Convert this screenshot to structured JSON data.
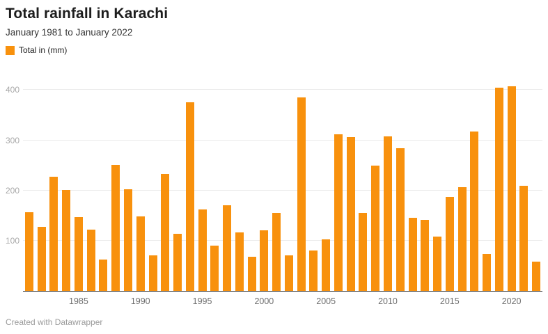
{
  "header": {
    "title": "Total rainfall in Karachi",
    "subtitle": "January 1981 to January 2022"
  },
  "legend": {
    "label": "Total in (mm)",
    "color": "#F8910D"
  },
  "chart_data": {
    "type": "bar",
    "title": "Total rainfall in Karachi",
    "subtitle": "January 1981 to January 2022",
    "categories": [
      1981,
      1982,
      1983,
      1984,
      1985,
      1986,
      1987,
      1988,
      1989,
      1990,
      1991,
      1992,
      1993,
      1994,
      1995,
      1996,
      1997,
      1998,
      1999,
      2000,
      2001,
      2002,
      2003,
      2004,
      2005,
      2006,
      2007,
      2008,
      2009,
      2010,
      2011,
      2012,
      2013,
      2014,
      2015,
      2016,
      2017,
      2018,
      2019,
      2020,
      2021,
      2022
    ],
    "series": [
      {
        "name": "Total in (mm)",
        "values": [
          156,
          127,
          227,
          201,
          147,
          122,
          62,
          251,
          203,
          148,
          71,
          233,
          113,
          375,
          162,
          90,
          171,
          117,
          68,
          120,
          155,
          71,
          386,
          80,
          103,
          312,
          307,
          155,
          249,
          308,
          284,
          146,
          142,
          108,
          187,
          206,
          317,
          74,
          405,
          408,
          210,
          58
        ]
      }
    ],
    "xlabel": "",
    "ylabel": "",
    "x_tick_labels": [
      "1985",
      "1990",
      "1995",
      "2000",
      "2005",
      "2010",
      "2015",
      "2020"
    ],
    "y_ticks": [
      100,
      200,
      300,
      400
    ],
    "ylim": [
      0,
      420
    ],
    "bar_color": "#F8910D",
    "grid": "horizontal",
    "legend_position": "top-left"
  },
  "footer": {
    "credit": "Created with Datawrapper"
  }
}
